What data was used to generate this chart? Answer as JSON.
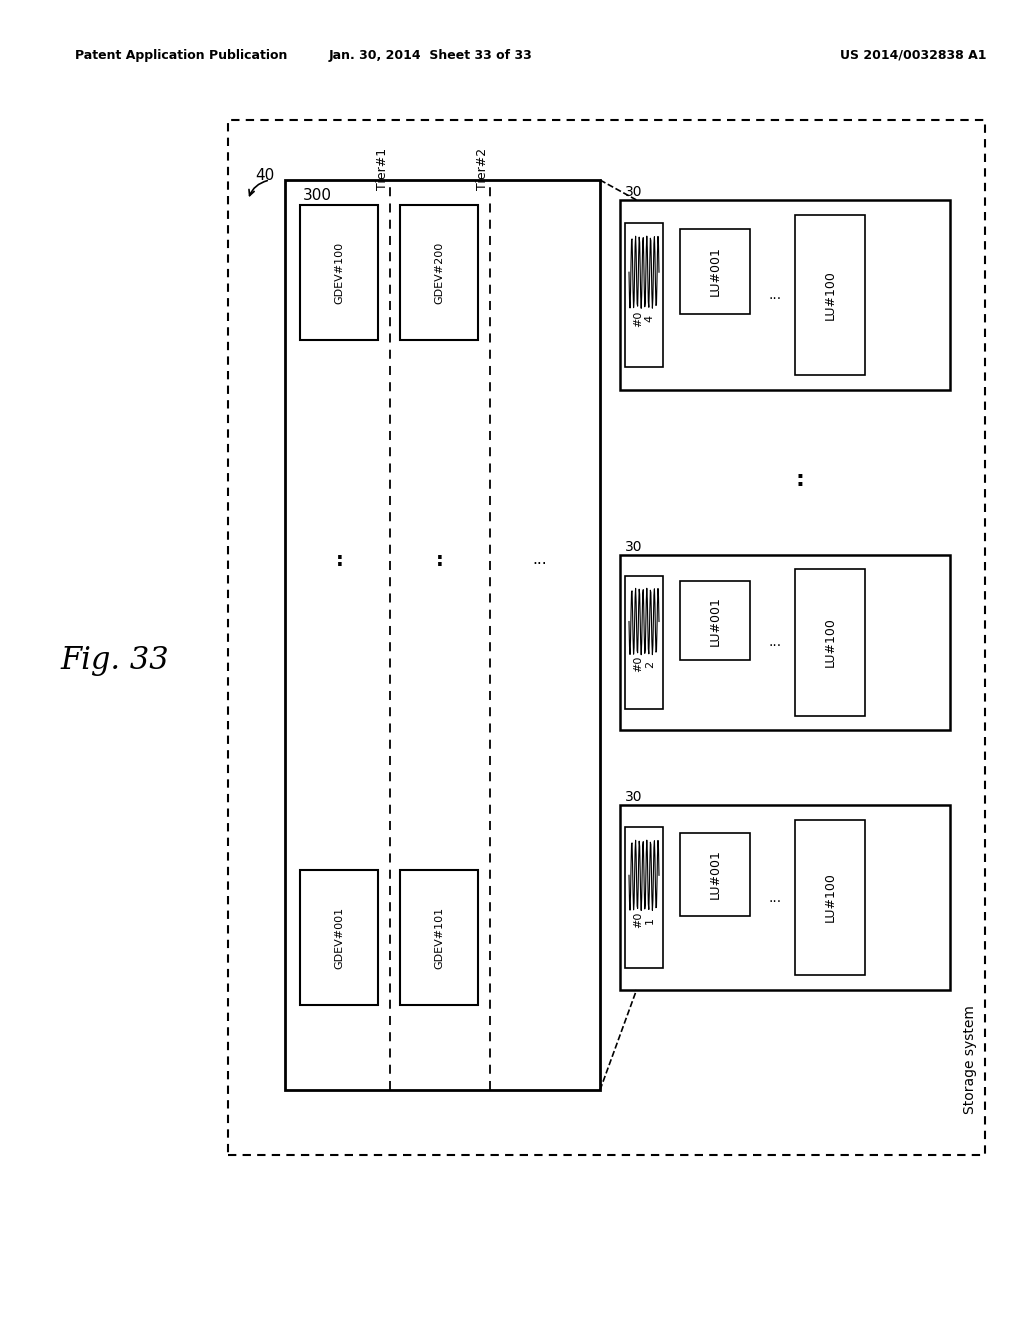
{
  "title_left": "Patent Application Publication",
  "title_mid": "Jan. 30, 2014  Sheet 33 of 33",
  "title_right": "US 2014/0032838 A1",
  "fig_label": "Fig. 33",
  "background_color": "#ffffff"
}
